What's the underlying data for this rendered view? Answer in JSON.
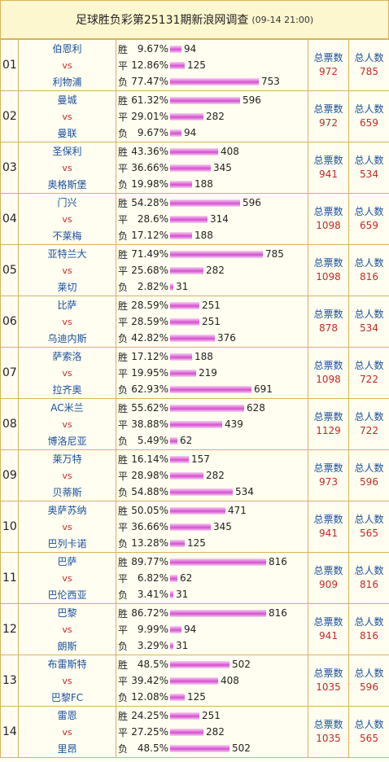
{
  "header": {
    "title": "足球胜负彩第25131期新浪网调查",
    "time": "(09-14 21:00)"
  },
  "labels": {
    "vs": "vs",
    "total_votes": "总票数",
    "total_people": "总人数",
    "win": "胜",
    "draw": "平",
    "lose": "负"
  },
  "matches": [
    {
      "no": "01",
      "home": "伯恩利",
      "away": "利物浦",
      "results": [
        {
          "label": "胜",
          "pct": "9.67%",
          "count": 94
        },
        {
          "label": "平",
          "pct": "12.86%",
          "count": 125
        },
        {
          "label": "负",
          "pct": "77.47%",
          "count": 753
        }
      ],
      "votes": "972",
      "people": "785"
    },
    {
      "no": "02",
      "home": "曼城",
      "away": "曼联",
      "results": [
        {
          "label": "胜",
          "pct": "61.32%",
          "count": 596
        },
        {
          "label": "平",
          "pct": "29.01%",
          "count": 282
        },
        {
          "label": "负",
          "pct": "9.67%",
          "count": 94
        }
      ],
      "votes": "972",
      "people": "659"
    },
    {
      "no": "03",
      "home": "圣保利",
      "away": "奥格斯堡",
      "results": [
        {
          "label": "胜",
          "pct": "43.36%",
          "count": 408
        },
        {
          "label": "平",
          "pct": "36.66%",
          "count": 345
        },
        {
          "label": "负",
          "pct": "19.98%",
          "count": 188
        }
      ],
      "votes": "941",
      "people": "534"
    },
    {
      "no": "04",
      "home": "门兴",
      "away": "不莱梅",
      "results": [
        {
          "label": "胜",
          "pct": "54.28%",
          "count": 596
        },
        {
          "label": "平",
          "pct": "28.6%",
          "count": 314
        },
        {
          "label": "负",
          "pct": "17.12%",
          "count": 188
        }
      ],
      "votes": "1098",
      "people": "659"
    },
    {
      "no": "05",
      "home": "亚特兰大",
      "away": "莱切",
      "results": [
        {
          "label": "胜",
          "pct": "71.49%",
          "count": 785
        },
        {
          "label": "平",
          "pct": "25.68%",
          "count": 282
        },
        {
          "label": "负",
          "pct": "2.82%",
          "count": 31
        }
      ],
      "votes": "1098",
      "people": "816"
    },
    {
      "no": "06",
      "home": "比萨",
      "away": "乌迪内斯",
      "results": [
        {
          "label": "胜",
          "pct": "28.59%",
          "count": 251
        },
        {
          "label": "平",
          "pct": "28.59%",
          "count": 251
        },
        {
          "label": "负",
          "pct": "42.82%",
          "count": 376
        }
      ],
      "votes": "878",
      "people": "534"
    },
    {
      "no": "07",
      "home": "萨索洛",
      "away": "拉齐奥",
      "results": [
        {
          "label": "胜",
          "pct": "17.12%",
          "count": 188
        },
        {
          "label": "平",
          "pct": "19.95%",
          "count": 219
        },
        {
          "label": "负",
          "pct": "62.93%",
          "count": 691
        }
      ],
      "votes": "1098",
      "people": "722"
    },
    {
      "no": "08",
      "home": "AC米兰",
      "away": "博洛尼亚",
      "results": [
        {
          "label": "胜",
          "pct": "55.62%",
          "count": 628
        },
        {
          "label": "平",
          "pct": "38.88%",
          "count": 439
        },
        {
          "label": "负",
          "pct": "5.49%",
          "count": 62
        }
      ],
      "votes": "1129",
      "people": "722"
    },
    {
      "no": "09",
      "home": "莱万特",
      "away": "贝蒂斯",
      "results": [
        {
          "label": "胜",
          "pct": "16.14%",
          "count": 157
        },
        {
          "label": "平",
          "pct": "28.98%",
          "count": 282
        },
        {
          "label": "负",
          "pct": "54.88%",
          "count": 534
        }
      ],
      "votes": "973",
      "people": "596"
    },
    {
      "no": "10",
      "home": "奥萨苏纳",
      "away": "巴列卡诺",
      "results": [
        {
          "label": "胜",
          "pct": "50.05%",
          "count": 471
        },
        {
          "label": "平",
          "pct": "36.66%",
          "count": 345
        },
        {
          "label": "负",
          "pct": "13.28%",
          "count": 125
        }
      ],
      "votes": "941",
      "people": "565"
    },
    {
      "no": "11",
      "home": "巴萨",
      "away": "巴伦西亚",
      "results": [
        {
          "label": "胜",
          "pct": "89.77%",
          "count": 816
        },
        {
          "label": "平",
          "pct": "6.82%",
          "count": 62
        },
        {
          "label": "负",
          "pct": "3.41%",
          "count": 31
        }
      ],
      "votes": "909",
      "people": "816"
    },
    {
      "no": "12",
      "home": "巴黎",
      "away": "朗斯",
      "results": [
        {
          "label": "胜",
          "pct": "86.72%",
          "count": 816
        },
        {
          "label": "平",
          "pct": "9.99%",
          "count": 94
        },
        {
          "label": "负",
          "pct": "3.29%",
          "count": 31
        }
      ],
      "votes": "941",
      "people": "816"
    },
    {
      "no": "13",
      "home": "布雷斯特",
      "away": "巴黎FC",
      "results": [
        {
          "label": "胜",
          "pct": "48.5%",
          "count": 502
        },
        {
          "label": "平",
          "pct": "39.42%",
          "count": 408
        },
        {
          "label": "负",
          "pct": "12.08%",
          "count": 125
        }
      ],
      "votes": "1035",
      "people": "596"
    },
    {
      "no": "14",
      "home": "雷恩",
      "away": "里昂",
      "results": [
        {
          "label": "胜",
          "pct": "24.25%",
          "count": 251
        },
        {
          "label": "平",
          "pct": "27.25%",
          "count": 282
        },
        {
          "label": "负",
          "pct": "48.5%",
          "count": 502
        }
      ],
      "votes": "1035",
      "people": "565"
    }
  ],
  "colors": {
    "border": "#d9b25a",
    "team": "#1a4fa0",
    "accent": "#c62828",
    "bar": "#d64fd0"
  }
}
